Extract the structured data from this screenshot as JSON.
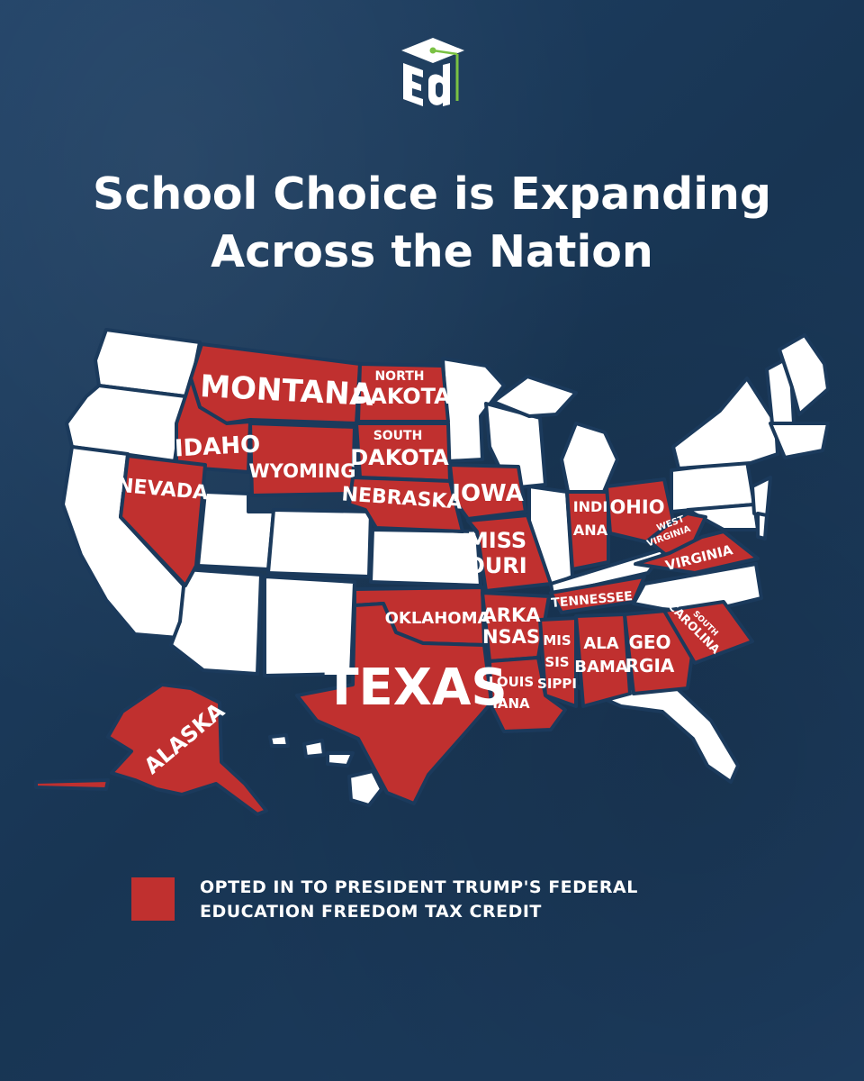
{
  "logo": {
    "text": "Ed",
    "icon": "graduation-cap-icon"
  },
  "title": {
    "line1": "School Choice is Expanding",
    "line2": "Across the Nation"
  },
  "colors": {
    "background": "#1b3a5c",
    "opted_in": "#c0302f",
    "not_opted_in": "#ffffff",
    "logo_accent": "#7ac143"
  },
  "legend": {
    "line1": "OPTED IN TO PRESIDENT TRUMP'S FEDERAL",
    "line2": "EDUCATION FREEDOM TAX CREDIT"
  },
  "states": {
    "montana": "MONTANA",
    "north_dakota_1": "NORTH",
    "north_dakota_2": "DAKOTA",
    "south_dakota_1": "SOUTH",
    "south_dakota_2": "DAKOTA",
    "idaho": "IDAHO",
    "wyoming": "WYOMING",
    "nevada": "NEVADA",
    "nebraska": "NEBRASKA",
    "iowa": "IOWA",
    "missouri_1": "MISS",
    "missouri_2": "OURI",
    "indiana_1": "INDI",
    "indiana_2": "ANA",
    "ohio": "OHIO",
    "west_virginia_1": "WEST",
    "west_virginia_2": "VIRGINIA",
    "virginia": "VIRGINIA",
    "tennessee": "TENNESSEE",
    "oklahoma": "OKLAHOMA",
    "arkansas_1": "ARKA",
    "arkansas_2": "NSAS",
    "mississippi_1": "MIS",
    "mississippi_2": "SIS",
    "mississippi_3": "SIPPI",
    "alabama_1": "ALA",
    "alabama_2": "BAMA",
    "georgia_1": "GEO",
    "georgia_2": "RGIA",
    "south_carolina_1": "SOUTH",
    "south_carolina_2": "CAROLINA",
    "texas": "TEXAS",
    "louisiana_1": "LOUIS",
    "louisiana_2": "IANA",
    "alaska": "ALASKA"
  }
}
